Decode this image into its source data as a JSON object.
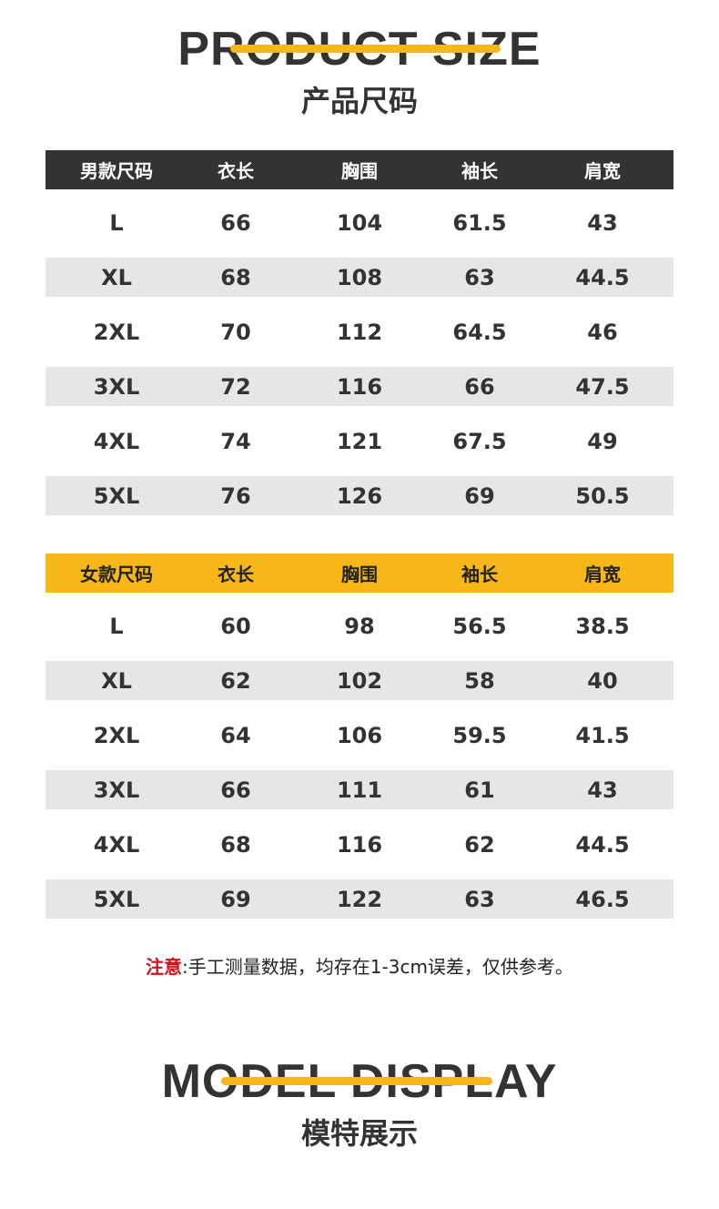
{
  "header": {
    "title_en": "PRODUCT SIZE",
    "title_zh": "产品尺码"
  },
  "men": {
    "header": [
      "男款尺码",
      "衣长",
      "胸围",
      "袖长",
      "肩宽"
    ],
    "header_bg": "#333333",
    "header_color": "#ffffff",
    "rows": [
      [
        "L",
        "66",
        "104",
        "61.5",
        "43"
      ],
      [
        "XL",
        "68",
        "108",
        "63",
        "44.5"
      ],
      [
        "2XL",
        "70",
        "112",
        "64.5",
        "46"
      ],
      [
        "3XL",
        "72",
        "116",
        "66",
        "47.5"
      ],
      [
        "4XL",
        "74",
        "121",
        "67.5",
        "49"
      ],
      [
        "5XL",
        "76",
        "126",
        "69",
        "50.5"
      ]
    ]
  },
  "women": {
    "header": [
      "女款尺码",
      "衣长",
      "胸围",
      "袖长",
      "肩宽"
    ],
    "header_bg": "#f6b818",
    "header_color": "#222222",
    "rows": [
      [
        "L",
        "60",
        "98",
        "56.5",
        "38.5"
      ],
      [
        "XL",
        "62",
        "102",
        "58",
        "40"
      ],
      [
        "2XL",
        "64",
        "106",
        "59.5",
        "41.5"
      ],
      [
        "3XL",
        "66",
        "111",
        "61",
        "43"
      ],
      [
        "4XL",
        "68",
        "116",
        "62",
        "44.5"
      ],
      [
        "5XL",
        "69",
        "122",
        "63",
        "46.5"
      ]
    ]
  },
  "note": {
    "label": "注意",
    "text": ":手工测量数据，均存在1-3cm误差，仅供参考。"
  },
  "footer": {
    "title_en": "MODEL DISPLAY",
    "title_zh": "模特展示"
  },
  "colors": {
    "accent": "#f6b818",
    "warning": "#d0121b"
  }
}
